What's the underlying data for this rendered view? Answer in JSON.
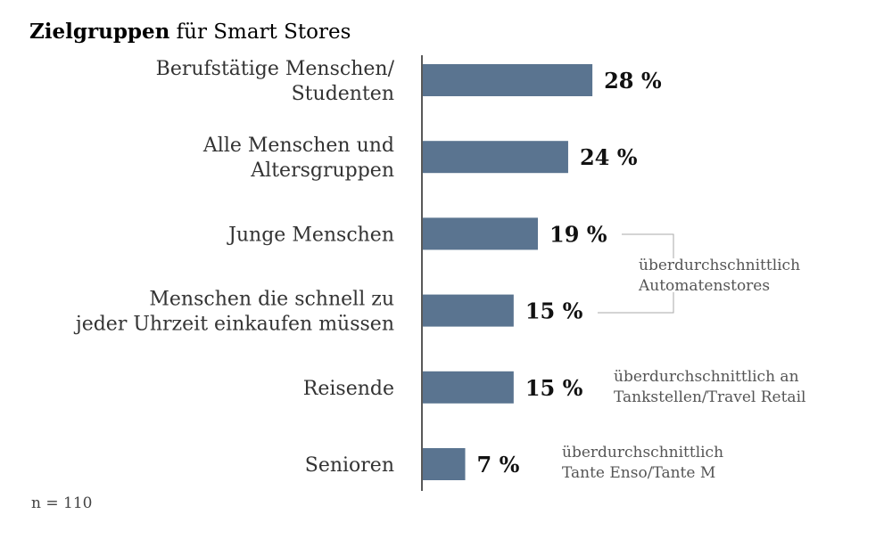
{
  "chart_data": {
    "type": "bar",
    "orientation": "horizontal",
    "title_bold": "Zielgruppen",
    "title_rest": " für Smart Stores",
    "categories": [
      [
        "Berufstätige Menschen/",
        "Studenten"
      ],
      [
        "Alle Menschen und",
        "Altersgruppen"
      ],
      [
        "Junge Menschen"
      ],
      [
        "Menschen die schnell zu",
        "jeder Uhrzeit einkaufen müssen"
      ],
      [
        "Reisende"
      ],
      [
        "Senioren"
      ]
    ],
    "values": [
      28,
      24,
      19,
      15,
      15,
      7
    ],
    "value_labels": [
      "28 %",
      "24 %",
      "19 %",
      "15 %",
      "15 %",
      "7 %"
    ],
    "xlim": [
      0,
      100
    ],
    "grid": false,
    "bar_color": "#5a7490",
    "annotations": [
      {
        "lines": [
          "überdurchschnittlich",
          "Automatenstores"
        ],
        "applies_to": [
          2,
          3
        ]
      },
      {
        "lines": [
          "überdurchschnittlich an",
          "Tankstellen/Travel Retail"
        ],
        "applies_to": [
          4
        ]
      },
      {
        "lines": [
          "überdurchschnittlich",
          "Tante Enso/Tante M"
        ],
        "applies_to": [
          5
        ]
      }
    ],
    "footnote": "n = 110"
  }
}
